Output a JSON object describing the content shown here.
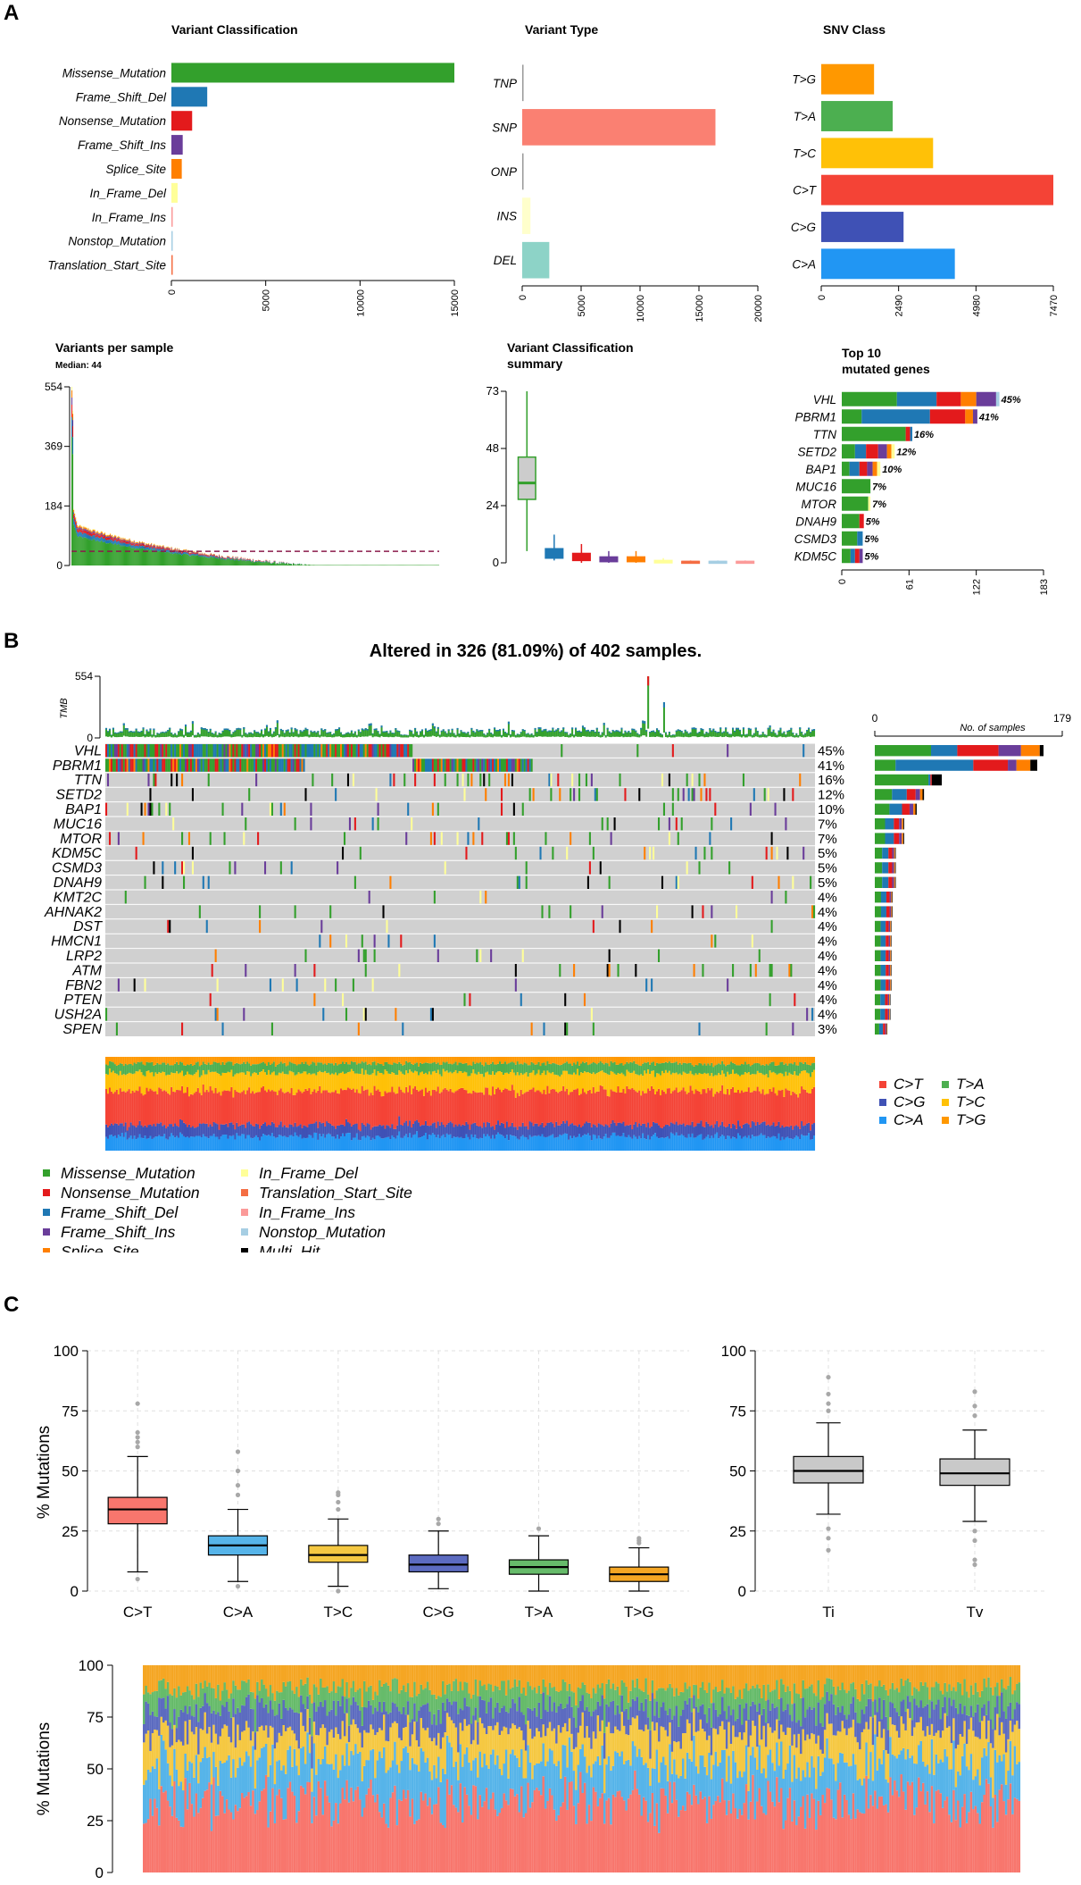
{
  "panels": {
    "a": "A",
    "b": "B",
    "c": "C"
  },
  "colors": {
    "Missense_Mutation": "#33A02C",
    "Frame_Shift_Del": "#1F78B4",
    "Nonsense_Mutation": "#E31A1C",
    "Frame_Shift_Ins": "#6A3D9A",
    "Splice_Site": "#FF7F00",
    "In_Frame_Del": "#FFFF99",
    "In_Frame_Ins": "#FB9A99",
    "Nonstop_Mutation": "#A6CEE3",
    "Translation_Start_Site": "#F46D43",
    "Multi_Hit": "#000000",
    "SNP": "#FA8072",
    "INS": "#FFFFCC",
    "DEL": "#8DD3C7",
    "C>T": "#F44336",
    "C>G": "#3F51B5",
    "C>A": "#2196F3",
    "T>A": "#4CAF50",
    "T>C": "#FFC107",
    "T>G": "#FF9800",
    "box_C>T": "#F8766D",
    "box_C>A": "#56B4E9",
    "box_T>C": "#F5C842",
    "box_C>G": "#5C6BC0",
    "box_T>A": "#66BB6A",
    "box_T>G": "#F5A623",
    "grey": "#C9C9C9"
  },
  "chart_data": [
    {
      "id": "variant_classification",
      "type": "bar",
      "title": "Variant Classification",
      "categories": [
        "Missense_Mutation",
        "Frame_Shift_Del",
        "Nonsense_Mutation",
        "Frame_Shift_Ins",
        "Splice_Site",
        "In_Frame_Del",
        "In_Frame_Ins",
        "Nonstop_Mutation",
        "Translation_Start_Site"
      ],
      "values": [
        15000,
        1900,
        1100,
        600,
        550,
        330,
        60,
        25,
        15
      ],
      "xlim": [
        0,
        15000
      ],
      "ticks": [
        "0",
        "5000",
        "10000",
        "15000"
      ]
    },
    {
      "id": "variant_type",
      "type": "bar",
      "title": "Variant Type",
      "categories": [
        "TNP",
        "SNP",
        "ONP",
        "INS",
        "DEL"
      ],
      "values": [
        5,
        16400,
        10,
        700,
        2300
      ],
      "xlim": [
        0,
        20000
      ],
      "ticks": [
        "0",
        "5000",
        "10000",
        "15000",
        "20000"
      ]
    },
    {
      "id": "snv_class",
      "type": "bar",
      "title": "SNV Class",
      "categories": [
        "T>G",
        "T>A",
        "T>C",
        "C>T",
        "C>G",
        "C>A"
      ],
      "values": [
        1700,
        2300,
        3600,
        7470,
        2650,
        4300
      ],
      "xlim": [
        0,
        7470
      ],
      "ticks": [
        "0",
        "2490",
        "4980",
        "7470"
      ]
    },
    {
      "id": "variants_per_sample",
      "type": "bar",
      "title": "Variants per sample",
      "subtitle": "Median: 44",
      "n_samples": 402,
      "median": 44,
      "ylim": [
        0,
        554
      ],
      "ticks": [
        "0",
        "184",
        "369",
        "554"
      ]
    },
    {
      "id": "variant_classification_summary",
      "type": "box",
      "title": "Variant Classification",
      "title2": "summary",
      "ylim": [
        0,
        73
      ],
      "ticks": [
        "0",
        "24",
        "48",
        "73"
      ],
      "boxes": [
        {
          "name": "Missense_Mutation",
          "min": 5,
          "q1": 27,
          "median": 34,
          "q3": 45,
          "max": 73
        },
        {
          "name": "Frame_Shift_Del",
          "min": 1,
          "q1": 2,
          "median": 4,
          "q3": 6,
          "max": 12
        },
        {
          "name": "Nonsense_Mutation",
          "min": 0,
          "q1": 1,
          "median": 2.5,
          "q3": 4,
          "max": 8
        },
        {
          "name": "Frame_Shift_Ins",
          "min": 0,
          "q1": 0.5,
          "median": 1.5,
          "q3": 2.5,
          "max": 5
        },
        {
          "name": "Splice_Site",
          "min": 0,
          "q1": 0.5,
          "median": 1.5,
          "q3": 2.5,
          "max": 5
        },
        {
          "name": "In_Frame_Del",
          "min": 0,
          "q1": 0,
          "median": 0.5,
          "q3": 1,
          "max": 2
        },
        {
          "name": "Translation_Start_Site",
          "min": 0,
          "q1": 0,
          "median": 0.3,
          "q3": 0.6,
          "max": 1
        },
        {
          "name": "Nonstop_Mutation",
          "min": 0,
          "q1": 0,
          "median": 0.3,
          "q3": 0.6,
          "max": 1
        },
        {
          "name": "In_Frame_Ins",
          "min": 0,
          "q1": 0,
          "median": 0.3,
          "q3": 0.6,
          "max": 1
        }
      ]
    },
    {
      "id": "top10_genes",
      "type": "bar",
      "title": "Top 10",
      "title2": "mutated genes",
      "xlim": [
        0,
        183
      ],
      "ticks": [
        "0",
        "61",
        "122",
        "183"
      ],
      "genes": [
        {
          "gene": "VHL",
          "pct": "45%",
          "parts": [
            [
              50,
              "Missense_Mutation"
            ],
            [
              36,
              "Frame_Shift_Del"
            ],
            [
              22,
              "Nonsense_Mutation"
            ],
            [
              14,
              "Splice_Site"
            ],
            [
              18,
              "Frame_Shift_Ins"
            ],
            [
              3,
              "Nonstop_Mutation"
            ]
          ]
        },
        {
          "gene": "PBRM1",
          "pct": "41%",
          "parts": [
            [
              18,
              "Missense_Mutation"
            ],
            [
              62,
              "Frame_Shift_Del"
            ],
            [
              32,
              "Nonsense_Mutation"
            ],
            [
              7,
              "Splice_Site"
            ],
            [
              4,
              "Frame_Shift_Ins"
            ]
          ]
        },
        {
          "gene": "TTN",
          "pct": "16%",
          "parts": [
            [
              58,
              "Missense_Mutation"
            ],
            [
              4,
              "Nonsense_Mutation"
            ],
            [
              2,
              "Frame_Shift_Del"
            ]
          ]
        },
        {
          "gene": "SETD2",
          "pct": "12%",
          "parts": [
            [
              12,
              "Missense_Mutation"
            ],
            [
              10,
              "Frame_Shift_Del"
            ],
            [
              11,
              "Nonsense_Mutation"
            ],
            [
              8,
              "Frame_Shift_Ins"
            ],
            [
              4,
              "Splice_Site"
            ],
            [
              3,
              "In_Frame_Del"
            ]
          ]
        },
        {
          "gene": "BAP1",
          "pct": "10%",
          "parts": [
            [
              7,
              "Missense_Mutation"
            ],
            [
              9,
              "Frame_Shift_Del"
            ],
            [
              7,
              "Nonsense_Mutation"
            ],
            [
              5,
              "Frame_Shift_Ins"
            ],
            [
              4,
              "Splice_Site"
            ],
            [
              3,
              "In_Frame_Del"
            ]
          ]
        },
        {
          "gene": "MUC16",
          "pct": "7%",
          "parts": [
            [
              26,
              "Missense_Mutation"
            ]
          ]
        },
        {
          "gene": "MTOR",
          "pct": "7%",
          "parts": [
            [
              24,
              "Missense_Mutation"
            ],
            [
              2,
              "In_Frame_Del"
            ]
          ]
        },
        {
          "gene": "DNAH9",
          "pct": "5%",
          "parts": [
            [
              16,
              "Missense_Mutation"
            ],
            [
              4,
              "Nonsense_Mutation"
            ]
          ]
        },
        {
          "gene": "CSMD3",
          "pct": "5%",
          "parts": [
            [
              14,
              "Missense_Mutation"
            ],
            [
              5,
              "Frame_Shift_Del"
            ]
          ]
        },
        {
          "gene": "KDM5C",
          "pct": "5%",
          "parts": [
            [
              8,
              "Missense_Mutation"
            ],
            [
              4,
              "Frame_Shift_Del"
            ],
            [
              4,
              "Nonsense_Mutation"
            ],
            [
              3,
              "Frame_Shift_Ins"
            ]
          ]
        }
      ]
    },
    {
      "id": "oncoplot",
      "type": "heatmap",
      "title": "Altered in 326 (81.09%) of 402 samples.",
      "tmb_label": "TMB",
      "tmb_ticks": [
        "0",
        "554"
      ],
      "side_title": "No. of samples",
      "side_ticks": [
        "0",
        "179"
      ],
      "side_max": 179,
      "n_samples": 402,
      "genes": [
        "VHL",
        "PBRM1",
        "TTN",
        "SETD2",
        "BAP1",
        "MUC16",
        "MTOR",
        "KDM5C",
        "CSMD3",
        "DNAH9",
        "KMT2C",
        "AHNAK2",
        "DST",
        "HMCN1",
        "LRP2",
        "ATM",
        "FBN2",
        "PTEN",
        "USH2A",
        "SPEN"
      ],
      "pcts": [
        "45%",
        "41%",
        "16%",
        "12%",
        "10%",
        "7%",
        "7%",
        "5%",
        "5%",
        "5%",
        "4%",
        "4%",
        "4%",
        "4%",
        "4%",
        "4%",
        "4%",
        "4%",
        "4%",
        "3%"
      ],
      "counts": [
        179,
        165,
        64,
        47,
        40,
        28,
        28,
        20,
        20,
        20,
        17,
        17,
        16,
        16,
        16,
        16,
        16,
        15,
        15,
        12
      ],
      "legend_classes": [
        "Missense_Mutation",
        "Nonsense_Mutation",
        "Frame_Shift_Del",
        "Frame_Shift_Ins",
        "Splice_Site",
        "In_Frame_Del",
        "Translation_Start_Site",
        "In_Frame_Ins",
        "Nonstop_Mutation",
        "Multi_Hit"
      ],
      "legend_titv": [
        "C>T",
        "T>A",
        "C>G",
        "T>C",
        "C>A",
        "T>G"
      ]
    },
    {
      "id": "titv_box",
      "type": "box",
      "ylabel": "% Mutations",
      "ylim": [
        0,
        100
      ],
      "ticks": [
        "0",
        "25",
        "50",
        "75",
        "100"
      ],
      "boxes": [
        {
          "name": "C>T",
          "min": 8,
          "q1": 28,
          "median": 34,
          "q3": 39,
          "max": 56,
          "outliers": [
            5,
            60,
            62,
            64,
            66,
            78
          ]
        },
        {
          "name": "C>A",
          "min": 4,
          "q1": 15,
          "median": 19,
          "q3": 23,
          "max": 34,
          "outliers": [
            2,
            40,
            44,
            50,
            58
          ]
        },
        {
          "name": "T>C",
          "min": 2,
          "q1": 12,
          "median": 15,
          "q3": 19,
          "max": 30,
          "outliers": [
            0,
            34,
            37,
            40,
            41
          ]
        },
        {
          "name": "C>G",
          "min": 1,
          "q1": 8,
          "median": 11,
          "q3": 15,
          "max": 25,
          "outliers": [
            28,
            30
          ]
        },
        {
          "name": "T>A",
          "min": 0,
          "q1": 7,
          "median": 10,
          "q3": 13,
          "max": 23,
          "outliers": [
            26
          ]
        },
        {
          "name": "T>G",
          "min": 0,
          "q1": 4,
          "median": 7,
          "q3": 10,
          "max": 18,
          "outliers": [
            20,
            21,
            22
          ]
        }
      ]
    },
    {
      "id": "titv_fraction_box",
      "type": "box",
      "ylim": [
        0,
        100
      ],
      "ticks": [
        "0",
        "25",
        "50",
        "75",
        "100"
      ],
      "boxes": [
        {
          "name": "Ti",
          "min": 32,
          "q1": 45,
          "median": 50,
          "q3": 56,
          "max": 70,
          "outliers": [
            17,
            22,
            26,
            75,
            78,
            82,
            89
          ]
        },
        {
          "name": "Tv",
          "min": 29,
          "q1": 44,
          "median": 49,
          "q3": 55,
          "max": 67,
          "outliers": [
            11,
            13,
            21,
            25,
            73,
            77,
            83
          ]
        }
      ]
    },
    {
      "id": "titv_stacked",
      "type": "bar",
      "ylabel": "% Mutations",
      "ylim": [
        0,
        100
      ],
      "ticks": [
        "0",
        "25",
        "50",
        "75",
        "100"
      ],
      "n_samples": 402,
      "classes": [
        "C>T",
        "C>A",
        "T>C",
        "C>G",
        "T>A",
        "T>G"
      ],
      "mean_pct": [
        34,
        19,
        15,
        11,
        10,
        11
      ]
    }
  ]
}
